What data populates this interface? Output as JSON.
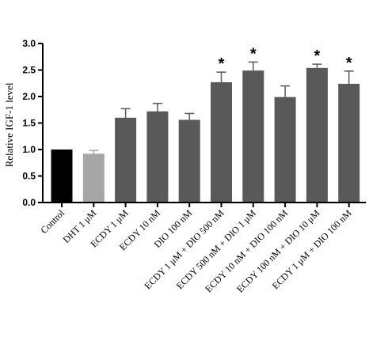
{
  "chart_data": {
    "type": "bar",
    "title": "",
    "xlabel": "",
    "ylabel": "Relative IGF-1 level",
    "ylim": [
      0,
      3.0
    ],
    "yticks": [
      "0.0",
      "0.5",
      "1.0",
      "1.5",
      "2.0",
      "2.5",
      "3.0"
    ],
    "grid": false,
    "categories": [
      "Control",
      "DHT 1 μM",
      "ECDY 1 μM",
      "ECDY 10 nM",
      "DIO 100 nM",
      "ECDY 1 μM + DIO 500 nM",
      "ECDY 500 nM + DIO 1 μM",
      "ECDY 10 nM + DIO 100 nM",
      "ECDY 100 nM + DIO 10 μM",
      "ECDY 1 μM + DIO 100 nM"
    ],
    "values": [
      1.0,
      0.92,
      1.6,
      1.72,
      1.56,
      2.27,
      2.49,
      1.99,
      2.54,
      2.24
    ],
    "errors": [
      0.0,
      0.06,
      0.17,
      0.15,
      0.12,
      0.19,
      0.16,
      0.21,
      0.07,
      0.24
    ],
    "significant": [
      false,
      false,
      false,
      false,
      false,
      true,
      true,
      false,
      true,
      true
    ],
    "significance_marker": "*",
    "colors": [
      "#000000",
      "#a6a6a6",
      "#595959",
      "#595959",
      "#595959",
      "#595959",
      "#595959",
      "#595959",
      "#595959",
      "#595959"
    ]
  }
}
